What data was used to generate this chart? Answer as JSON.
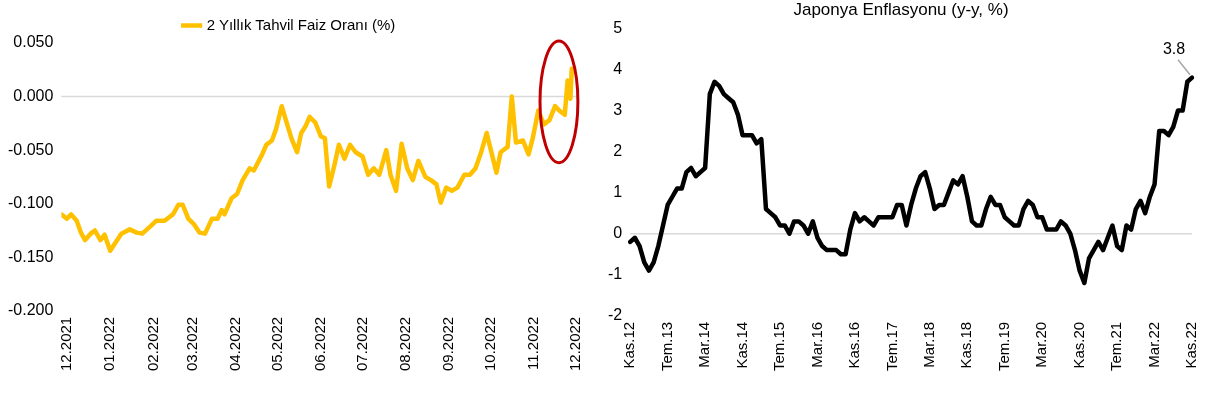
{
  "chart_data": [
    {
      "type": "line",
      "legend": "top",
      "grid": false,
      "marker": "none",
      "line_style": "solid",
      "series": [
        {
          "name": "2 Yıllık Tahvil Faiz Oranı (%)",
          "color": "#ffc000",
          "x": [
            "2021-11-27",
            "2021-12-01",
            "2021-12-04",
            "2021-12-08",
            "2021-12-11",
            "2021-12-14",
            "2021-12-18",
            "2021-12-21",
            "2021-12-25",
            "2021-12-28",
            "2022-01-01",
            "2022-01-05",
            "2022-01-09",
            "2022-01-15",
            "2022-01-20",
            "2022-01-24",
            "2022-01-30",
            "2022-02-03",
            "2022-02-09",
            "2022-02-15",
            "2022-02-19",
            "2022-02-22",
            "2022-02-26",
            "2022-03-02",
            "2022-03-06",
            "2022-03-10",
            "2022-03-15",
            "2022-03-19",
            "2022-03-22",
            "2022-03-24",
            "2022-03-29",
            "2022-04-02",
            "2022-04-06",
            "2022-04-11",
            "2022-04-14",
            "2022-04-20",
            "2022-04-23",
            "2022-04-27",
            "2022-04-30",
            "2022-05-04",
            "2022-05-07",
            "2022-05-11",
            "2022-05-15",
            "2022-05-18",
            "2022-05-21",
            "2022-05-24",
            "2022-05-28",
            "2022-06-01",
            "2022-06-04",
            "2022-06-07",
            "2022-06-11",
            "2022-06-14",
            "2022-06-18",
            "2022-06-22",
            "2022-06-26",
            "2022-07-01",
            "2022-07-05",
            "2022-07-09",
            "2022-07-13",
            "2022-07-18",
            "2022-07-21",
            "2022-07-25",
            "2022-07-29",
            "2022-08-02",
            "2022-08-06",
            "2022-08-10",
            "2022-08-15",
            "2022-08-19",
            "2022-08-23",
            "2022-08-26",
            "2022-08-30",
            "2022-09-03",
            "2022-09-07",
            "2022-09-12",
            "2022-09-16",
            "2022-09-20",
            "2022-09-24",
            "2022-09-28",
            "2022-10-01",
            "2022-10-05",
            "2022-10-08",
            "2022-10-13",
            "2022-10-16",
            "2022-10-19",
            "2022-10-24",
            "2022-10-28",
            "2022-10-31",
            "2022-11-04",
            "2022-11-08",
            "2022-11-12",
            "2022-11-16",
            "2022-11-19",
            "2022-11-23",
            "2022-11-25",
            "2022-11-27",
            "2022-11-28"
          ],
          "values": [
            -0.11,
            -0.114,
            -0.11,
            -0.116,
            -0.127,
            -0.134,
            -0.128,
            -0.125,
            -0.134,
            -0.129,
            -0.144,
            -0.136,
            -0.128,
            -0.124,
            -0.127,
            -0.128,
            -0.121,
            -0.116,
            -0.116,
            -0.11,
            -0.101,
            -0.101,
            -0.114,
            -0.119,
            -0.127,
            -0.128,
            -0.114,
            -0.114,
            -0.106,
            -0.11,
            -0.095,
            -0.091,
            -0.078,
            -0.067,
            -0.069,
            -0.054,
            -0.045,
            -0.041,
            -0.03,
            -0.009,
            -0.022,
            -0.039,
            -0.052,
            -0.034,
            -0.028,
            -0.019,
            -0.024,
            -0.037,
            -0.039,
            -0.084,
            -0.063,
            -0.045,
            -0.058,
            -0.045,
            -0.052,
            -0.056,
            -0.073,
            -0.067,
            -0.073,
            -0.05,
            -0.073,
            -0.088,
            -0.044,
            -0.067,
            -0.078,
            -0.06,
            -0.075,
            -0.078,
            -0.082,
            -0.099,
            -0.085,
            -0.088,
            -0.085,
            -0.073,
            -0.073,
            -0.067,
            -0.052,
            -0.034,
            -0.05,
            -0.071,
            -0.052,
            -0.047,
            0.0,
            -0.043,
            -0.041,
            -0.054,
            -0.039,
            -0.013,
            -0.026,
            -0.022,
            -0.009,
            -0.013,
            -0.017,
            0.015,
            -0.002,
            0.026
          ]
        }
      ],
      "xlim": [
        "2021-11-27",
        "2022-12-02"
      ],
      "xticks": [
        {
          "value": "2021-12-01",
          "label": "12.2021"
        },
        {
          "value": "2022-01-01",
          "label": "01.2022"
        },
        {
          "value": "2022-02-01",
          "label": "02.2022"
        },
        {
          "value": "2022-03-01",
          "label": "03.2022"
        },
        {
          "value": "2022-04-01",
          "label": "04.2022"
        },
        {
          "value": "2022-05-01",
          "label": "05.2022"
        },
        {
          "value": "2022-06-01",
          "label": "06.2022"
        },
        {
          "value": "2022-07-01",
          "label": "07.2022"
        },
        {
          "value": "2022-08-01",
          "label": "08.2022"
        },
        {
          "value": "2022-09-01",
          "label": "09.2022"
        },
        {
          "value": "2022-10-01",
          "label": "10.2022"
        },
        {
          "value": "2022-11-01",
          "label": "11.2022"
        },
        {
          "value": "2022-12-01",
          "label": "12.2022"
        }
      ],
      "ylim": [
        -0.2,
        0.05
      ],
      "yticks": [
        {
          "value": -0.2,
          "label": "-0.200"
        },
        {
          "value": -0.15,
          "label": "-0.150"
        },
        {
          "value": -0.1,
          "label": "-0.100"
        },
        {
          "value": -0.05,
          "label": "-0.050"
        },
        {
          "value": 0,
          "label": "0.000"
        },
        {
          "value": 0.05,
          "label": "0.050"
        }
      ],
      "ref_lines": [
        {
          "axis": "y",
          "value": 0,
          "color": "#d9d9d9"
        }
      ]
    },
    {
      "type": "line",
      "title": "Japonya Enflasyonu (y-y, %)",
      "legend": false,
      "grid": false,
      "marker": "none",
      "line_style": "solid",
      "categories": [
        "Kas.12",
        null,
        null,
        null,
        null,
        null,
        null,
        null,
        "Tem.13",
        null,
        null,
        null,
        null,
        null,
        null,
        null,
        "Mar.14",
        null,
        null,
        null,
        null,
        null,
        null,
        null,
        "Kas.14",
        null,
        null,
        null,
        null,
        null,
        null,
        null,
        "Tem.15",
        null,
        null,
        null,
        null,
        null,
        null,
        null,
        "Mar.16",
        null,
        null,
        null,
        null,
        null,
        null,
        null,
        "Kas.16",
        null,
        null,
        null,
        null,
        null,
        null,
        null,
        "Tem.17",
        null,
        null,
        null,
        null,
        null,
        null,
        null,
        "Mar.18",
        null,
        null,
        null,
        null,
        null,
        null,
        null,
        "Kas.18",
        null,
        null,
        null,
        null,
        null,
        null,
        null,
        "Tem.19",
        null,
        null,
        null,
        null,
        null,
        null,
        null,
        "Mar.20",
        null,
        null,
        null,
        null,
        null,
        null,
        null,
        "Kas.20",
        null,
        null,
        null,
        null,
        null,
        null,
        null,
        "Tem.21",
        null,
        null,
        null,
        null,
        null,
        null,
        null,
        "Mar.22",
        null,
        null,
        null,
        null,
        null,
        null,
        null,
        "Kas.22"
      ],
      "series": [
        {
          "color": "#000000",
          "values": [
            -0.2,
            -0.1,
            -0.3,
            -0.7,
            -0.9,
            -0.7,
            -0.3,
            0.2,
            0.7,
            0.9,
            1.1,
            1.1,
            1.5,
            1.6,
            1.4,
            1.5,
            1.6,
            3.4,
            3.7,
            3.6,
            3.4,
            3.3,
            3.2,
            2.9,
            2.4,
            2.4,
            2.4,
            2.2,
            2.3,
            0.6,
            0.5,
            0.4,
            0.2,
            0.2,
            0.0,
            0.3,
            0.3,
            0.2,
            0.0,
            0.3,
            -0.1,
            -0.3,
            -0.4,
            -0.4,
            -0.4,
            -0.5,
            -0.5,
            0.1,
            0.5,
            0.3,
            0.4,
            0.3,
            0.2,
            0.4,
            0.4,
            0.4,
            0.4,
            0.7,
            0.7,
            0.2,
            0.7,
            1.1,
            1.4,
            1.5,
            1.1,
            0.6,
            0.7,
            0.7,
            1.0,
            1.3,
            1.2,
            1.4,
            0.9,
            0.3,
            0.2,
            0.2,
            0.6,
            0.9,
            0.7,
            0.7,
            0.4,
            0.3,
            0.2,
            0.2,
            0.6,
            0.8,
            0.7,
            0.4,
            0.4,
            0.1,
            0.1,
            0.1,
            0.3,
            0.2,
            0.0,
            -0.4,
            -0.9,
            -1.2,
            -0.6,
            -0.4,
            -0.2,
            -0.4,
            -0.1,
            0.2,
            -0.3,
            -0.4,
            0.2,
            0.1,
            0.6,
            0.8,
            0.5,
            0.9,
            1.2,
            2.5,
            2.5,
            2.4,
            2.6,
            3.0,
            3.0,
            3.7,
            3.8
          ]
        }
      ],
      "ylim": [
        -2,
        5
      ],
      "yticks": [
        -2,
        -1,
        0,
        1,
        2,
        3,
        4,
        5
      ],
      "ref_lines": [
        {
          "axis": "y",
          "value": 0,
          "color": "#d9d9d9"
        }
      ],
      "annotations": [
        {
          "text": "3.8",
          "x": "Kas.22",
          "y": 3.8
        }
      ]
    }
  ]
}
